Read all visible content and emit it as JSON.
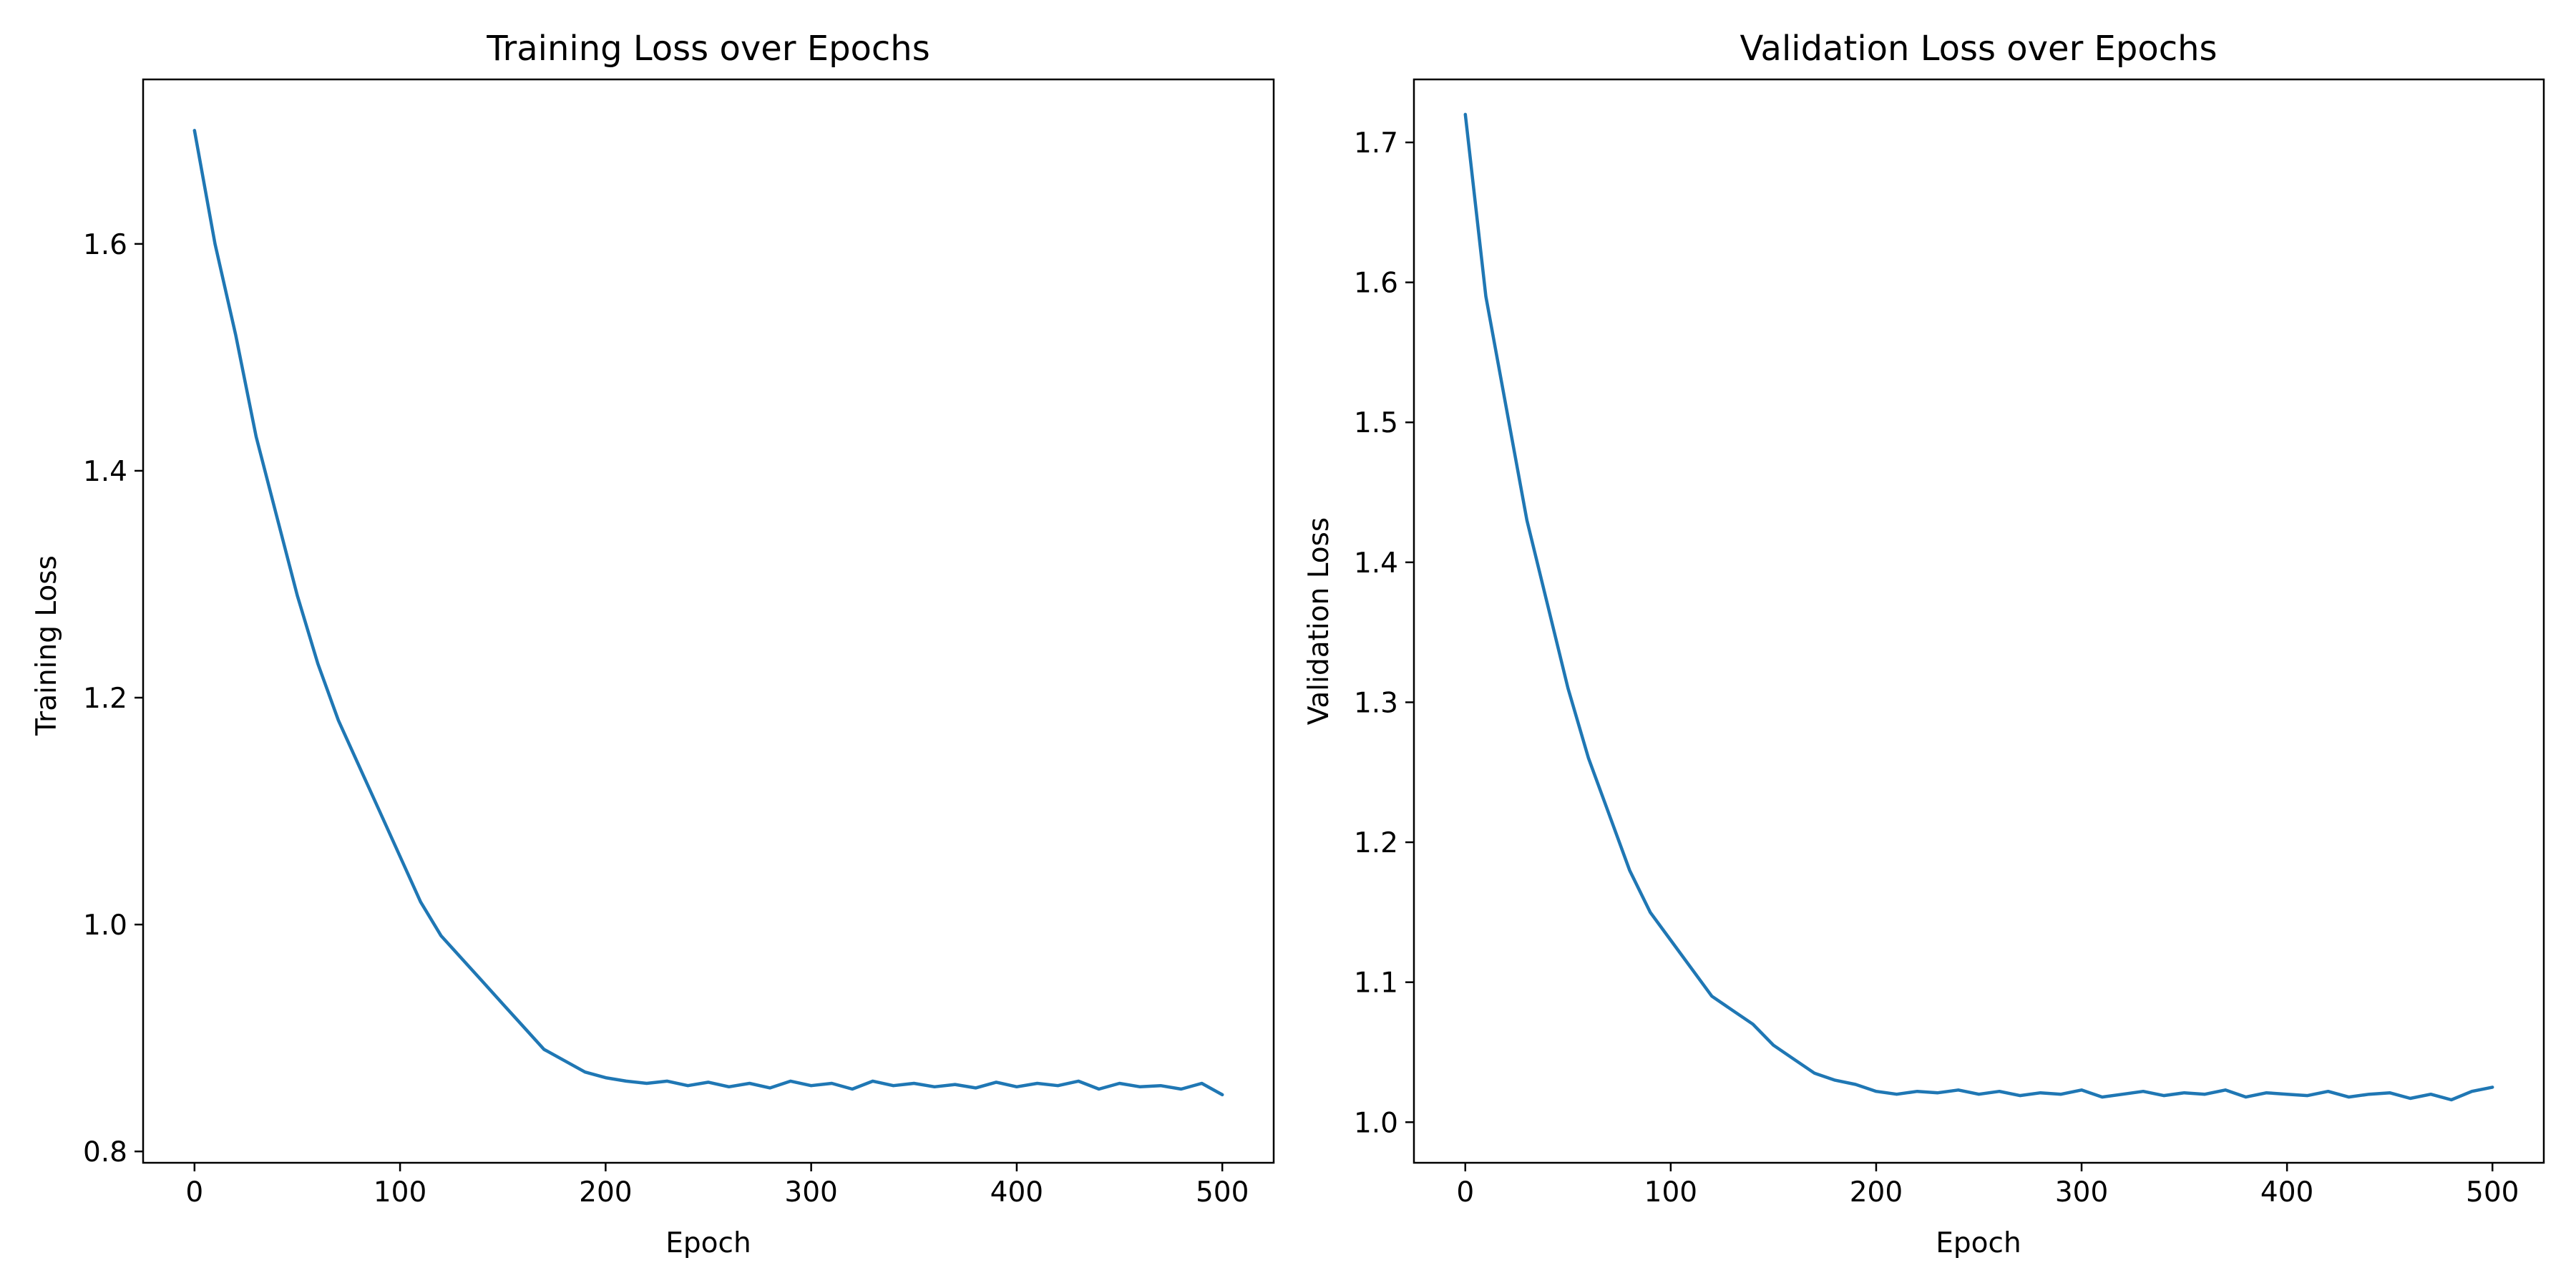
{
  "chart_data": [
    {
      "type": "line",
      "title": "Training Loss over Epochs",
      "xlabel": "Epoch",
      "ylabel": "Training Loss",
      "xlim": [
        -25,
        525
      ],
      "ylim": [
        0.79,
        1.745
      ],
      "xticks": [
        0,
        100,
        200,
        300,
        400,
        500
      ],
      "yticks": [
        0.8,
        1.0,
        1.2,
        1.4,
        1.6
      ],
      "grid": false,
      "color": "#1f77b4",
      "series": [
        {
          "x": [
            0,
            10,
            20,
            30,
            40,
            50,
            60,
            70,
            80,
            90,
            100,
            110,
            120,
            130,
            140,
            150,
            160,
            170,
            180,
            190,
            200,
            210,
            220,
            230,
            240,
            250,
            260,
            270,
            280,
            290,
            300,
            310,
            320,
            330,
            340,
            350,
            360,
            370,
            380,
            390,
            400,
            410,
            420,
            430,
            440,
            450,
            460,
            470,
            480,
            490,
            500
          ],
          "y": [
            1.7,
            1.6,
            1.52,
            1.43,
            1.36,
            1.29,
            1.23,
            1.18,
            1.14,
            1.1,
            1.06,
            1.02,
            0.99,
            0.97,
            0.95,
            0.93,
            0.91,
            0.89,
            0.88,
            0.87,
            0.865,
            0.862,
            0.86,
            0.862,
            0.858,
            0.861,
            0.857,
            0.86,
            0.856,
            0.862,
            0.858,
            0.86,
            0.855,
            0.862,
            0.858,
            0.86,
            0.857,
            0.859,
            0.856,
            0.861,
            0.857,
            0.86,
            0.858,
            0.862,
            0.855,
            0.86,
            0.857,
            0.858,
            0.855,
            0.86,
            0.85
          ]
        }
      ]
    },
    {
      "type": "line",
      "title": "Validation Loss over Epochs",
      "xlabel": "Epoch",
      "ylabel": "Validation Loss",
      "xlim": [
        -25,
        525
      ],
      "ylim": [
        0.971,
        1.745
      ],
      "xticks": [
        0,
        100,
        200,
        300,
        400,
        500
      ],
      "yticks": [
        1.0,
        1.1,
        1.2,
        1.3,
        1.4,
        1.5,
        1.6,
        1.7
      ],
      "grid": false,
      "color": "#1f77b4",
      "series": [
        {
          "x": [
            0,
            10,
            20,
            30,
            40,
            50,
            60,
            70,
            80,
            90,
            100,
            110,
            120,
            130,
            140,
            150,
            160,
            170,
            180,
            190,
            200,
            210,
            220,
            230,
            240,
            250,
            260,
            270,
            280,
            290,
            300,
            310,
            320,
            330,
            340,
            350,
            360,
            370,
            380,
            390,
            400,
            410,
            420,
            430,
            440,
            450,
            460,
            470,
            480,
            490,
            500
          ],
          "y": [
            1.72,
            1.59,
            1.51,
            1.43,
            1.37,
            1.31,
            1.26,
            1.22,
            1.18,
            1.15,
            1.13,
            1.11,
            1.09,
            1.08,
            1.07,
            1.055,
            1.045,
            1.035,
            1.03,
            1.027,
            1.022,
            1.02,
            1.022,
            1.021,
            1.023,
            1.02,
            1.022,
            1.019,
            1.021,
            1.02,
            1.023,
            1.018,
            1.02,
            1.022,
            1.019,
            1.021,
            1.02,
            1.023,
            1.018,
            1.021,
            1.02,
            1.019,
            1.022,
            1.018,
            1.02,
            1.021,
            1.017,
            1.02,
            1.016,
            1.022,
            1.025
          ]
        }
      ]
    }
  ]
}
